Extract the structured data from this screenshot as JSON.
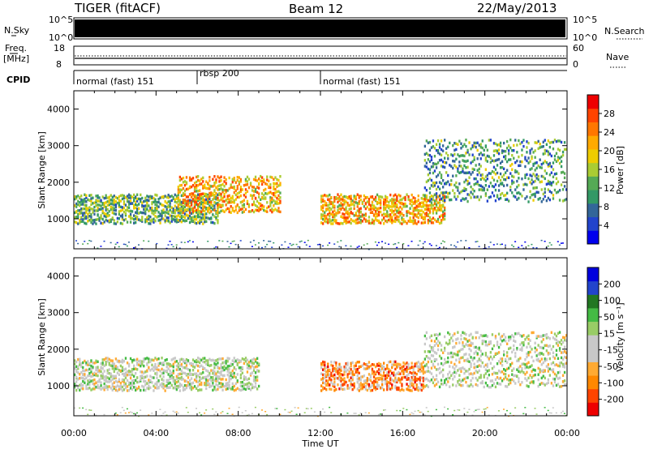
{
  "header": {
    "station": "TIGER (fitACF)",
    "beam": "Beam 12",
    "date": "22/May/2013"
  },
  "top_panels": {
    "nsky_label": "N.Sky",
    "nsearch_label": "N.Search",
    "nsky_ticks": [
      "10^5",
      "10^0"
    ],
    "nsearch_ticks": [
      "10^5",
      "10^0"
    ],
    "freq_label_line1": "Freq.",
    "freq_label_line2": "[MHz]",
    "freq_ticks": [
      "18",
      "8"
    ],
    "nave_label": "Nave",
    "nave_ticks": [
      "60",
      "0"
    ],
    "cpid_label": "CPID",
    "cpid_segments": [
      {
        "label": "normal (fast) 151",
        "start_hour": 0,
        "end_hour": 6
      },
      {
        "label": "rbsp 200",
        "start_hour": 6,
        "end_hour": 12
      },
      {
        "label": "normal (fast) 151",
        "start_hour": 12,
        "end_hour": 24
      }
    ]
  },
  "chart_data": [
    {
      "type": "heatmap",
      "title": "",
      "xlabel": "Time UT",
      "ylabel": "Slant Range [km]",
      "xlim": [
        0,
        24
      ],
      "ylim": [
        180,
        4500
      ],
      "x_tick_labels": [
        "00:00",
        "04:00",
        "08:00",
        "12:00",
        "16:00",
        "20:00",
        "00:00"
      ],
      "y_tick_labels": [
        "1000",
        "2000",
        "3000",
        "4000"
      ],
      "colorbar": {
        "label": "Power [dB]",
        "ticks": [
          "4",
          "8",
          "12",
          "16",
          "20",
          "24",
          "28"
        ],
        "range": [
          0,
          30
        ],
        "colors": [
          "#0000ee",
          "#2244cc",
          "#336699",
          "#339966",
          "#55aa55",
          "#aacc33",
          "#eecc00",
          "#ffaa00",
          "#ff7700",
          "#ff4400",
          "#ee0000"
        ]
      },
      "description_regions": [
        {
          "hours": [
            0,
            7
          ],
          "range_km": [
            900,
            1700
          ],
          "level_db": 12
        },
        {
          "hours": [
            5,
            10
          ],
          "range_km": [
            1200,
            2200
          ],
          "level_db": 20
        },
        {
          "hours": [
            12,
            18
          ],
          "range_km": [
            900,
            1700
          ],
          "level_db": 20
        },
        {
          "hours": [
            17,
            24
          ],
          "range_km": [
            1500,
            3200
          ],
          "level_db": 10
        }
      ]
    },
    {
      "type": "heatmap",
      "title": "",
      "xlabel": "Time UT",
      "ylabel": "Slant Range [km]",
      "xlim": [
        0,
        24
      ],
      "ylim": [
        180,
        4500
      ],
      "x_tick_labels": [
        "00:00",
        "04:00",
        "08:00",
        "12:00",
        "16:00",
        "20:00",
        "00:00"
      ],
      "y_tick_labels": [
        "1000",
        "2000",
        "3000",
        "4000"
      ],
      "colorbar": {
        "label": "Velocity [m s⁻¹]",
        "ticks": [
          "200",
          "100",
          "50",
          "15",
          "-15",
          "-50",
          "-100",
          "-200"
        ],
        "range": [
          -250,
          250
        ],
        "colors": [
          "#ee0000",
          "#ff4400",
          "#ff8800",
          "#ffaa33",
          "#c8c8c8",
          "#c8c8c8",
          "#99cc66",
          "#44bb44",
          "#227722",
          "#2244cc",
          "#0000dd"
        ]
      },
      "description_regions": [
        {
          "hours": [
            0,
            9
          ],
          "range_km": [
            900,
            1800
          ],
          "velocity": 0
        },
        {
          "hours": [
            12,
            17
          ],
          "range_km": [
            900,
            1700
          ],
          "velocity": -120
        },
        {
          "hours": [
            17,
            24
          ],
          "range_km": [
            1000,
            2500
          ],
          "velocity": 0
        }
      ]
    }
  ]
}
